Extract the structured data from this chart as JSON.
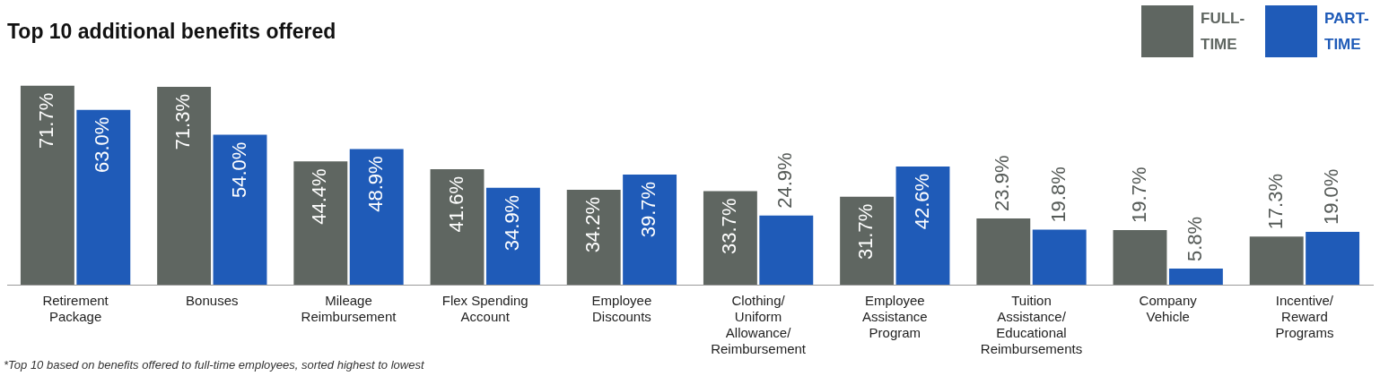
{
  "chart_data": {
    "type": "bar",
    "title": "Top 10 additional benefits offered",
    "categories": [
      "Retirement Package",
      "Bonuses",
      "Mileage Reimbursement",
      "Flex Spending Account",
      "Employee Discounts",
      "Clothing/Uniform Allowance/Reimbursement",
      "Employee Assistance Program",
      "Tuition Assistance/Educational Reimbursements",
      "Company Vehicle",
      "Incentive/Reward Programs"
    ],
    "series": [
      {
        "name": "FULL-TIME",
        "color": "#5f6661",
        "values": [
          71.7,
          71.3,
          44.4,
          41.6,
          34.2,
          33.7,
          31.7,
          23.9,
          19.7,
          17.3
        ],
        "value_labels": [
          "71.7%",
          "71.3%",
          "44.4%",
          "41.6%",
          "34.2%",
          "33.7%",
          "31.7%",
          "23.9%",
          "19.7%",
          "17.3%"
        ]
      },
      {
        "name": "PART-TIME",
        "color": "#1f5bb8",
        "values": [
          63.0,
          54.0,
          48.9,
          34.9,
          39.7,
          24.9,
          42.6,
          19.8,
          5.8,
          19.0
        ],
        "value_labels": [
          "63.0%",
          "54.0%",
          "48.9%",
          "34.9%",
          "39.7%",
          "24.9%",
          "42.6%",
          "19.8%",
          "5.8%",
          "19.0%"
        ]
      }
    ],
    "legend": "top right",
    "grid": false,
    "annotations": [
      "*Top 10 based on benefits offered to full-time employees, sorted highest to lowest"
    ]
  }
}
